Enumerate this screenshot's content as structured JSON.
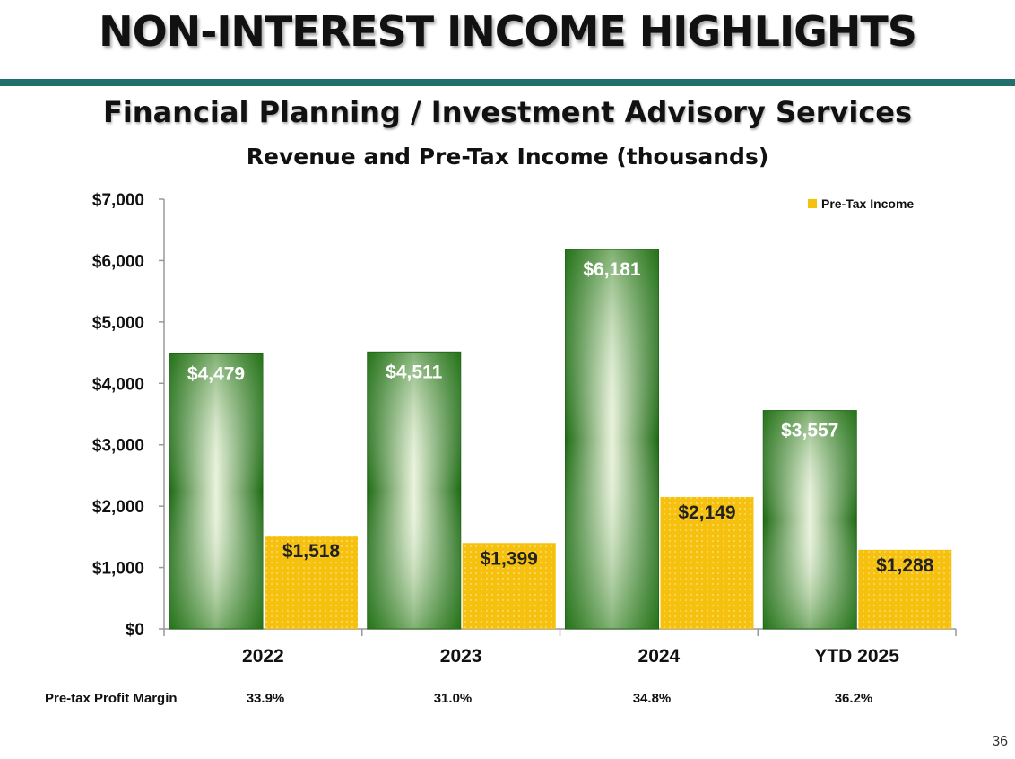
{
  "title": "NON-INTEREST INCOME HIGHLIGHTS",
  "subtitle": "Financial Planning / Investment Advisory Services",
  "page_number": "36",
  "colors": {
    "revenue_dark": "#1e6b14",
    "revenue_light": "#f2f7e8",
    "pretax": "#f5c10e",
    "rule": "#1f6f6c"
  },
  "margin_row": {
    "label": "Pre-tax Profit Margin",
    "values": [
      "33.9%",
      "31.0%",
      "34.8%",
      "36.2%"
    ]
  },
  "chart_data": {
    "type": "bar",
    "title": "Revenue and Pre-Tax Income (thousands)",
    "categories": [
      "2022",
      "2023",
      "2024",
      "YTD 2025"
    ],
    "series": [
      {
        "name": "Revenue",
        "values": [
          4479,
          4511,
          6181,
          3557
        ],
        "labels": [
          "$4,479",
          "$4,511",
          "$6,181",
          "$3,557"
        ]
      },
      {
        "name": "Pre-Tax Income",
        "values": [
          1518,
          1399,
          2149,
          1288
        ],
        "labels": [
          "$1,518",
          "$1,399",
          "$2,149",
          "$1,288"
        ]
      }
    ],
    "legend": [
      {
        "name": "Pre-Tax Income"
      }
    ],
    "legend_position": "top-right",
    "ylim": [
      0,
      7000
    ],
    "yticks": [
      0,
      1000,
      2000,
      3000,
      4000,
      5000,
      6000,
      7000
    ],
    "ytick_labels": [
      "$0",
      "$1,000",
      "$2,000",
      "$3,000",
      "$4,000",
      "$5,000",
      "$6,000",
      "$7,000"
    ],
    "xlabel": "",
    "ylabel": "",
    "grid": false
  }
}
